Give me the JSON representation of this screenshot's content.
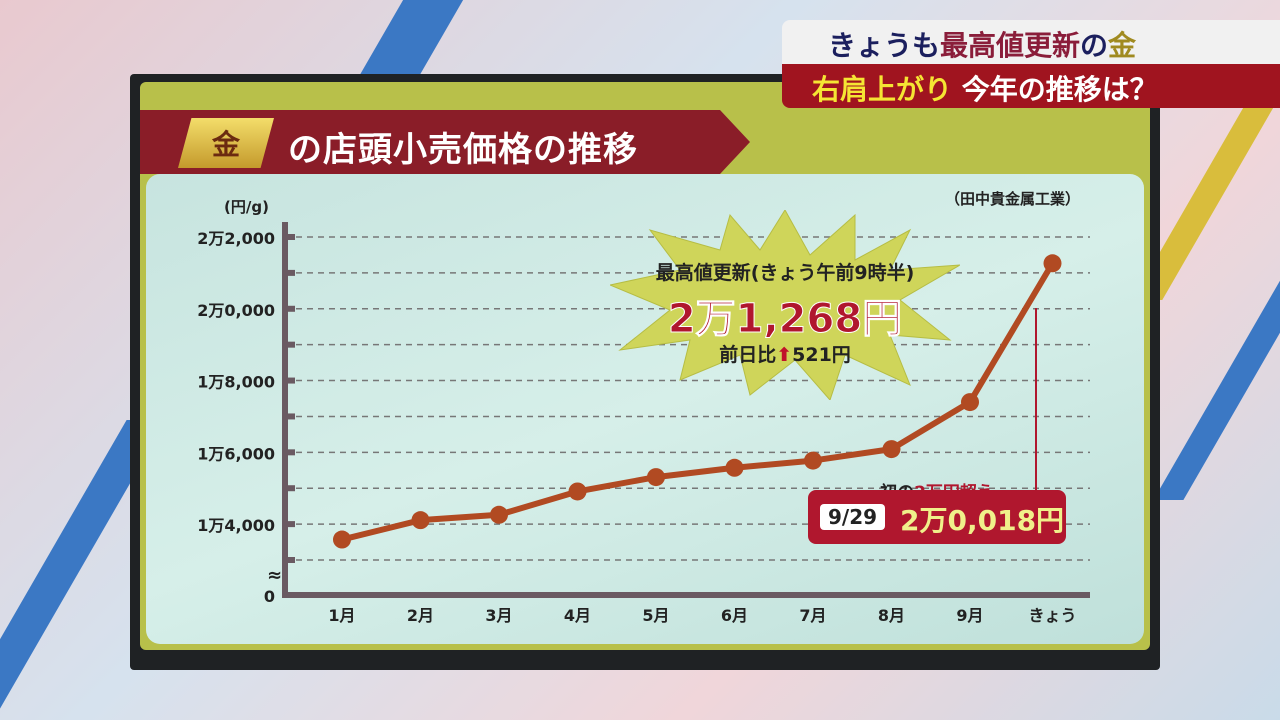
{
  "caption": {
    "line1_a": "きょうも",
    "line1_b": "最高値更新",
    "line1_c": "の",
    "line1_d": "金",
    "line2_a": "右肩上がり",
    "line2_b": "今年の推移は？"
  },
  "colors": {
    "line": "#b14a22",
    "accent_red": "#b0172e",
    "banner": "#8a1d28",
    "panel": "#b8c04a"
  },
  "chart_data": {
    "type": "line",
    "title_icon": "金",
    "title": "の店頭小売価格の推移",
    "source": "（田中貴金属工業）",
    "ylabel": "(円/g)",
    "ylim": [
      13000,
      22000
    ],
    "axis_break": true,
    "yticks": [
      {
        "v": 0,
        "label": "0"
      },
      {
        "v": 14000,
        "label": "1万4,000"
      },
      {
        "v": 16000,
        "label": "1万6,000"
      },
      {
        "v": 18000,
        "label": "1万8,000"
      },
      {
        "v": 20000,
        "label": "2万0,000"
      },
      {
        "v": 22000,
        "label": "2万2,000"
      }
    ],
    "grid": true,
    "categories": [
      "1月",
      "2月",
      "3月",
      "4月",
      "5月",
      "6月",
      "7月",
      "8月",
      "9月",
      "きょう"
    ],
    "values": [
      13570,
      14110,
      14260,
      14910,
      15310,
      15570,
      15770,
      16090,
      17400,
      21268
    ],
    "annotations": {
      "record_title": "最高値更新(きょう午前9時半)",
      "record_value": "2万1,268円",
      "record_diff_label": "前日比",
      "record_diff_value": "521円",
      "first_label_a": "初の",
      "first_label_b": "2万円超え",
      "first_date": "9/29",
      "first_value": "2万0,018円",
      "first_point_value": 20018
    }
  }
}
